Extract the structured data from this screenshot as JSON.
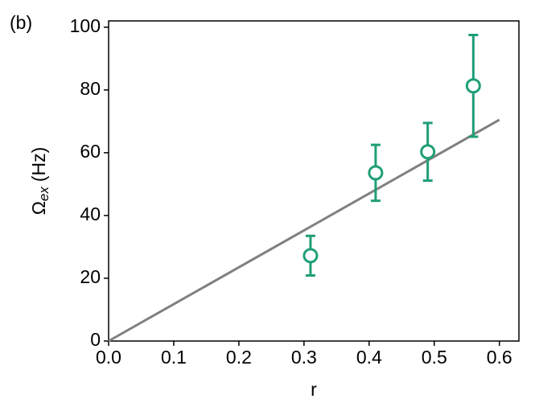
{
  "chart_data": {
    "type": "scatter",
    "panel_label": "(b)",
    "xlabel": "r",
    "ylabel": {
      "symbol": "Ω",
      "subscript": "ex",
      "unit": "(Hz)"
    },
    "xlim": [
      0,
      0.63
    ],
    "ylim": [
      0,
      102
    ],
    "xticks": [
      {
        "value": 0,
        "label": "0.0"
      },
      0.1,
      0.2,
      0.3,
      0.4,
      0.5,
      0.6
    ],
    "yticks": [
      0,
      20,
      40,
      60,
      80,
      100
    ],
    "series": [
      {
        "type": "line",
        "color": "#808080",
        "x": [
          0,
          0.6
        ],
        "values": [
          0,
          70.5
        ]
      },
      {
        "type": "errorbar",
        "color": "#1f9e77",
        "x": [
          0.31,
          0.41,
          0.49,
          0.56
        ],
        "values": [
          27.2,
          53.6,
          60.3,
          81.3
        ],
        "yerr": [
          6.3,
          8.9,
          9.2,
          16.2
        ]
      }
    ]
  }
}
